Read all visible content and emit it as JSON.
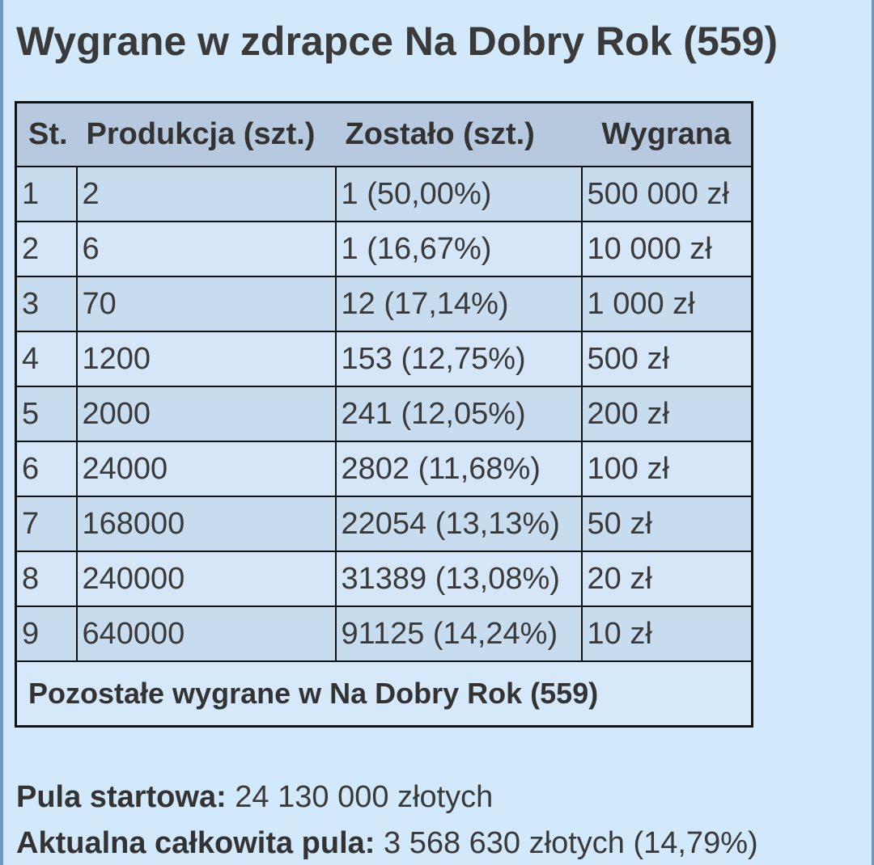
{
  "title": "Wygrane w zdrapce Na Dobry Rok (559)",
  "table": {
    "headers": [
      "St.",
      "Produkcja (szt.)",
      "Zostało (szt.)",
      "Wygrana"
    ],
    "rows": [
      [
        "1",
        "2",
        "1 (50,00%)",
        "500 000 zł"
      ],
      [
        "2",
        "6",
        "1 (16,67%)",
        "10 000 zł"
      ],
      [
        "3",
        "70",
        "12 (17,14%)",
        "1 000 zł"
      ],
      [
        "4",
        "1200",
        "153 (12,75%)",
        "500 zł"
      ],
      [
        "5",
        "2000",
        "241 (12,05%)",
        "200 zł"
      ],
      [
        "6",
        "24000",
        "2802 (11,68%)",
        "100 zł"
      ],
      [
        "7",
        "168000",
        "22054 (13,13%)",
        "50 zł"
      ],
      [
        "8",
        "240000",
        "31389 (13,08%)",
        "20 zł"
      ],
      [
        "9",
        "640000",
        "91125 (14,24%)",
        "10 zł"
      ]
    ],
    "footer_link": "Pozostałe wygrane w Na Dobry Rok (559)"
  },
  "summary": {
    "start_pool_label": "Pula startowa:",
    "start_pool_value": "24 130 000 złotych",
    "current_pool_label": "Aktualna całkowita pula:",
    "current_pool_value": "3 568 630 złotych (14,79%)"
  }
}
